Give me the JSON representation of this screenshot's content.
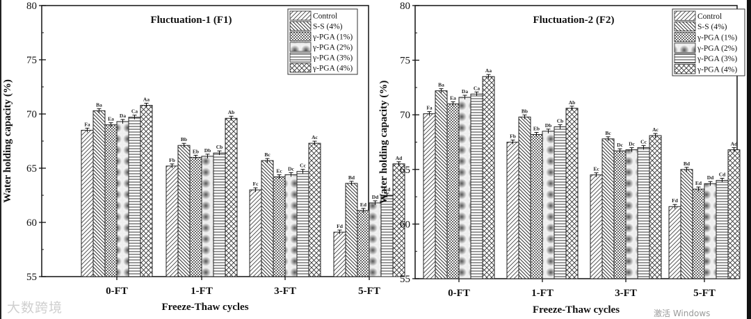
{
  "chart_data": [
    {
      "type": "bar",
      "title": "Fluctuation-1 (F1)",
      "xlabel": "Freeze-Thaw cycles",
      "ylabel": "Water holding capacity (%)",
      "ylim": [
        55,
        80
      ],
      "yticks": [
        55,
        60,
        65,
        70,
        75,
        80
      ],
      "categories": [
        "0-FT",
        "1-FT",
        "3-FT",
        "5-FT"
      ],
      "legend_position": "top-right",
      "series": [
        {
          "name": "Control",
          "values": [
            68.5,
            65.2,
            63.0,
            59.1
          ],
          "labels": [
            "Fa",
            "Fb",
            "Fc",
            "Fd"
          ]
        },
        {
          "name": "S-S (4%)",
          "values": [
            70.3,
            67.1,
            65.7,
            63.6
          ],
          "labels": [
            "Ba",
            "Bb",
            "Bc",
            "Bd"
          ]
        },
        {
          "name": "γ-PGA (1%)",
          "values": [
            69.0,
            66.0,
            64.2,
            61.1
          ],
          "labels": [
            "Ea",
            "Eb",
            "Ec",
            "Ed"
          ]
        },
        {
          "name": "γ-PGA (2%)",
          "values": [
            69.3,
            66.1,
            64.4,
            61.8
          ],
          "labels": [
            "Da",
            "Db",
            "Dc",
            "Dd"
          ]
        },
        {
          "name": "γ-PGA (3%)",
          "values": [
            69.7,
            66.4,
            64.7,
            62.5
          ],
          "labels": [
            "Ca",
            "Cb",
            "Cc",
            "Cd"
          ]
        },
        {
          "name": "γ-PGA (4%)",
          "values": [
            70.8,
            69.6,
            67.3,
            65.4
          ],
          "labels": [
            "Aa",
            "Ab",
            "Ac",
            "Ad"
          ]
        }
      ]
    },
    {
      "type": "bar",
      "title": "Fluctuation-2 (F2)",
      "xlabel": "Freeze-Thaw cycles",
      "ylabel": "Water holding capacity (%)",
      "ylim": [
        55,
        80
      ],
      "yticks": [
        55,
        60,
        65,
        70,
        75,
        80
      ],
      "categories": [
        "0-FT",
        "1-FT",
        "3-FT",
        "5-FT"
      ],
      "legend_position": "top-right",
      "series": [
        {
          "name": "Control",
          "values": [
            70.1,
            67.5,
            64.5,
            61.6
          ],
          "labels": [
            "Fa",
            "Fb",
            "Ec",
            "Fd"
          ]
        },
        {
          "name": "S-S (4%)",
          "values": [
            72.2,
            69.8,
            67.8,
            65.0
          ],
          "labels": [
            "Ba",
            "Bb",
            "Bc",
            "Bd"
          ]
        },
        {
          "name": "γ-PGA (1%)",
          "values": [
            71.0,
            68.2,
            66.7,
            63.2
          ],
          "labels": [
            "Ea",
            "Eb",
            "Dc",
            "Ed"
          ]
        },
        {
          "name": "γ-PGA (2%)",
          "values": [
            71.6,
            68.5,
            66.8,
            63.7
          ],
          "labels": [
            "Da",
            "Db",
            "Dc",
            "Dd"
          ]
        },
        {
          "name": "γ-PGA (3%)",
          "values": [
            71.9,
            68.9,
            67.0,
            64.0
          ],
          "labels": [
            "Ca",
            "Cb",
            "Cc",
            "Cd"
          ]
        },
        {
          "name": "γ-PGA (4%)",
          "values": [
            73.5,
            70.6,
            68.1,
            66.8
          ],
          "labels": [
            "Aa",
            "Ab",
            "Ac",
            "Ad"
          ]
        }
      ]
    }
  ],
  "watermark": {
    "brand": "大数跨境",
    "os_notice": "激活 Windows"
  }
}
